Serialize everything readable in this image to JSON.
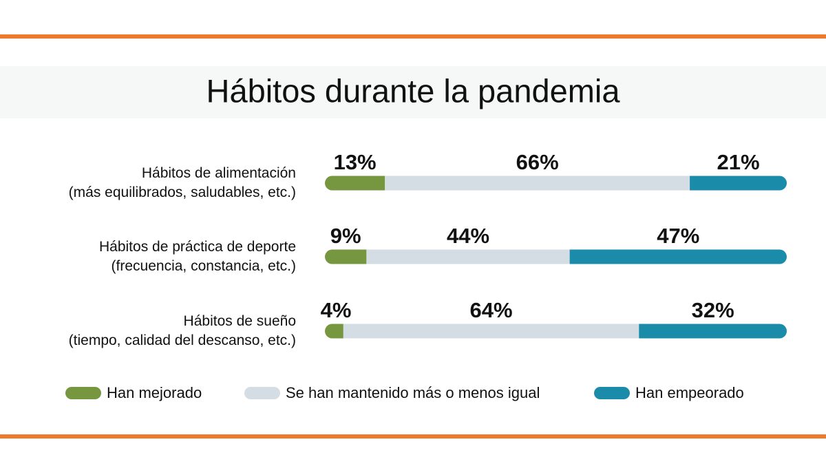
{
  "chart_data": {
    "type": "stacked-bar-horizontal",
    "title": "Hábitos durante la pandemia",
    "categories": [
      "Hábitos de alimentación\n(más equilibrados, saludables, etc.)",
      "Hábitos de práctica de deporte\n(frecuencia, constancia, etc.)",
      "Hábitos de sueño\n(tiempo, calidad del descanso, etc.)"
    ],
    "series": [
      {
        "name": "Han mejorado",
        "color": "#76973f",
        "values": [
          13,
          9,
          4
        ],
        "value_labels": [
          "13%",
          "9%",
          "4%"
        ]
      },
      {
        "name": "Se han mantenido más o menos igual",
        "color": "#d3dde3",
        "values": [
          66,
          44,
          64
        ],
        "value_labels": [
          "66%",
          "44%",
          "64%"
        ]
      },
      {
        "name": "Han empeorado",
        "color": "#1a8caa",
        "values": [
          21,
          47,
          32
        ],
        "value_labels": [
          "21%",
          "47%",
          "32%"
        ]
      }
    ]
  }
}
